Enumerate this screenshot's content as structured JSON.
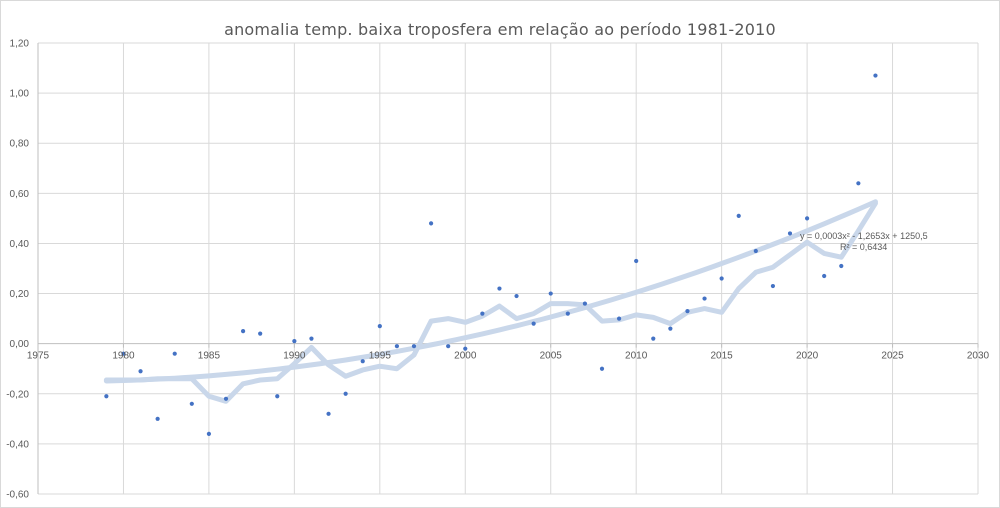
{
  "chart_data": {
    "type": "scatter",
    "title": "anomalia temp. baixa troposfera  em relação ao período  1981-2010",
    "xlabel": "",
    "ylabel": "",
    "xlim": [
      1975,
      2030
    ],
    "ylim": [
      -0.6,
      1.2
    ],
    "x_ticks": [
      1975,
      1980,
      1985,
      1990,
      1995,
      2000,
      2005,
      2010,
      2015,
      2020,
      2025,
      2030
    ],
    "y_ticks": [
      -0.6,
      -0.4,
      -0.2,
      0.0,
      0.2,
      0.4,
      0.6,
      0.8,
      1.0,
      1.2
    ],
    "x_tick_labels": [
      "1975",
      "1980",
      "1985",
      "1990",
      "1995",
      "2000",
      "2005",
      "2010",
      "2015",
      "2020",
      "2025",
      "2030"
    ],
    "y_tick_labels": [
      "-0,60",
      "-0,40",
      "-0,20",
      "0,00",
      "0,20",
      "0,40",
      "0,60",
      "0,80",
      "1,00",
      "1,20"
    ],
    "grid": {
      "horizontal": true,
      "vertical": true
    },
    "legend": "none",
    "points": {
      "x": [
        1979,
        1980,
        1981,
        1982,
        1983,
        1984,
        1985,
        1986,
        1987,
        1988,
        1989,
        1990,
        1991,
        1992,
        1993,
        1994,
        1995,
        1996,
        1997,
        1998,
        1999,
        2000,
        2001,
        2002,
        2003,
        2004,
        2005,
        2006,
        2007,
        2008,
        2009,
        2010,
        2011,
        2012,
        2013,
        2014,
        2015,
        2016,
        2017,
        2018,
        2019,
        2020,
        2021,
        2022,
        2023,
        2024
      ],
      "y": [
        -0.21,
        -0.04,
        -0.11,
        -0.3,
        -0.04,
        -0.24,
        -0.36,
        -0.22,
        0.05,
        0.04,
        -0.21,
        0.01,
        0.02,
        -0.28,
        -0.2,
        -0.07,
        0.07,
        -0.01,
        -0.01,
        0.48,
        -0.01,
        -0.02,
        0.12,
        0.22,
        0.19,
        0.08,
        0.2,
        0.12,
        0.16,
        -0.1,
        0.1,
        0.33,
        0.02,
        0.06,
        0.13,
        0.18,
        0.26,
        0.51,
        0.37,
        0.23,
        0.44,
        0.5,
        0.27,
        0.31,
        0.64,
        1.07
      ]
    },
    "moving_average": {
      "x": [
        1979,
        1980,
        1981,
        1982,
        1983,
        1984,
        1985,
        1986,
        1987,
        1988,
        1989,
        1990,
        1991,
        1992,
        1993,
        1994,
        1995,
        1996,
        1997,
        1998,
        1999,
        2000,
        2001,
        2002,
        2003,
        2004,
        2005,
        2006,
        2007,
        2008,
        2009,
        2010,
        2011,
        2012,
        2013,
        2014,
        2015,
        2016,
        2017,
        2018,
        2019,
        2020,
        2021,
        2022,
        2023,
        2024
      ],
      "y": [
        -0.145,
        -0.145,
        -0.145,
        -0.14,
        -0.14,
        -0.14,
        -0.21,
        -0.23,
        -0.16,
        -0.145,
        -0.14,
        -0.08,
        -0.015,
        -0.085,
        -0.13,
        -0.105,
        -0.09,
        -0.1,
        -0.045,
        0.09,
        0.1,
        0.085,
        0.11,
        0.15,
        0.1,
        0.12,
        0.16,
        0.16,
        0.155,
        0.09,
        0.095,
        0.115,
        0.105,
        0.08,
        0.125,
        0.14,
        0.125,
        0.22,
        0.285,
        0.305,
        0.355,
        0.405,
        0.36,
        0.345,
        0.45,
        0.56
      ]
    },
    "trendline": {
      "type": "polynomial",
      "x_range": [
        1979,
        2024
      ],
      "equation": "y = 0,0003x² - 1,2653x + 1250,5",
      "r_squared": "R² = 0,6434"
    },
    "colors": {
      "points": "#4472c4",
      "moving_average": "#c9d7ea",
      "trendline": "#c9d7ea",
      "grid": "#d9d9d9",
      "text": "#595959"
    }
  }
}
